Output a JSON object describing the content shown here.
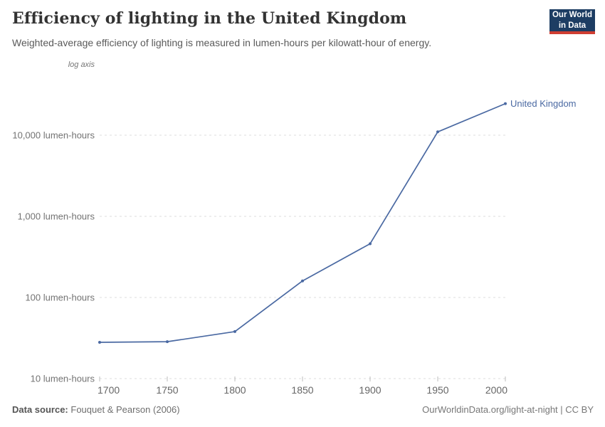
{
  "header": {
    "title": "Efficiency of lighting in the United Kingdom",
    "subtitle": "Weighted-average efficiency of lighting is measured in lumen-hours per kilowatt-hour of energy.",
    "logo": {
      "line1": "Our World",
      "line2": "in Data",
      "bg": "#1d3d63",
      "accent": "#cf3e32"
    }
  },
  "chart_data": {
    "type": "line",
    "title": "Efficiency of lighting in the United Kingdom",
    "axis_note": "log axis",
    "yscale": "log",
    "grid": "dashed",
    "xlim": [
      1700,
      2000
    ],
    "ylim": [
      10,
      25000
    ],
    "x": [
      1700,
      1750,
      1800,
      1850,
      1900,
      1950,
      2000
    ],
    "series": [
      {
        "name": "United Kingdom",
        "color": "#4a69a2",
        "values": [
          28,
          28.5,
          38,
          160,
          460,
          11000,
          24500
        ]
      }
    ],
    "yticks": [
      {
        "value": 10,
        "label": "10 lumen-hours"
      },
      {
        "value": 100,
        "label": "100 lumen-hours"
      },
      {
        "value": 1000,
        "label": "1,000 lumen-hours"
      },
      {
        "value": 10000,
        "label": "10,000 lumen-hours"
      }
    ],
    "xticks": [
      "1700",
      "1750",
      "1800",
      "1850",
      "1900",
      "1950",
      "2000"
    ]
  },
  "footer": {
    "source_label": "Data source:",
    "source_value": "Fouquet & Pearson (2006)",
    "credit": "OurWorldinData.org/light-at-night | CC BY"
  }
}
